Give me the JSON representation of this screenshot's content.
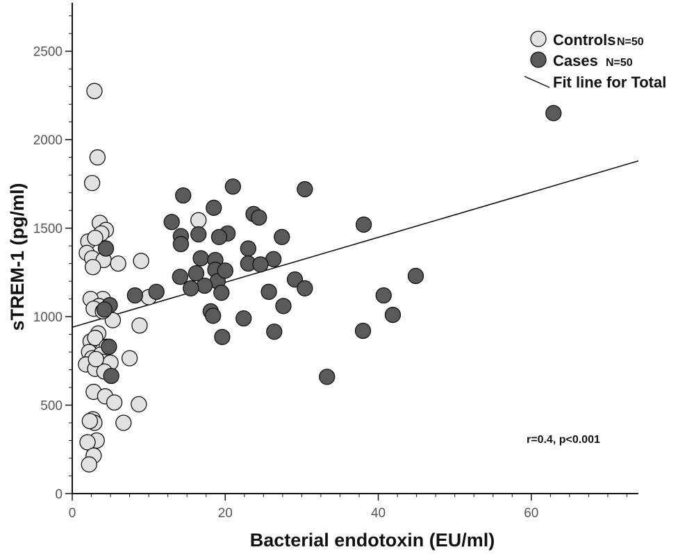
{
  "chart_data": {
    "type": "scatter",
    "title": "",
    "xlabel": "Bacterial endotoxin (EU/ml)",
    "ylabel": "sTREM-1 (pg/ml)",
    "xlim": [
      0,
      74
    ],
    "ylim": [
      0,
      2750
    ],
    "x_ticks": [
      0,
      20,
      40,
      60
    ],
    "y_ticks": [
      0,
      500,
      1000,
      1500,
      2000,
      2500
    ],
    "x_minor_step": 2.5,
    "y_minor_step": 100,
    "colors": {
      "controls": "#e2e2e2",
      "cases": "#5a5a5a",
      "outline": "#111111"
    },
    "legend": {
      "position": "top-right",
      "entries": [
        {
          "label": "Controls",
          "n": "N=50"
        },
        {
          "label": "Cases",
          "n": "N=50"
        },
        {
          "label": "Fit line for Total",
          "n": ""
        }
      ]
    },
    "annotation": "r=0.4, p<0.001",
    "fit_line": {
      "x": [
        0,
        74
      ],
      "y": [
        940,
        1880
      ]
    },
    "series": [
      {
        "name": "Controls",
        "points": [
          [
            2.9,
            2275
          ],
          [
            3.3,
            1900
          ],
          [
            2.6,
            1755
          ],
          [
            3.6,
            1530
          ],
          [
            4.4,
            1490
          ],
          [
            3.8,
            1470
          ],
          [
            2.1,
            1425
          ],
          [
            3.0,
            1445
          ],
          [
            1.9,
            1360
          ],
          [
            2.6,
            1330
          ],
          [
            4.1,
            1320
          ],
          [
            6.0,
            1300
          ],
          [
            2.7,
            1280
          ],
          [
            9.0,
            1315
          ],
          [
            4.0,
            1100
          ],
          [
            2.4,
            1100
          ],
          [
            3.5,
            1060
          ],
          [
            2.8,
            1045
          ],
          [
            10.0,
            1110
          ],
          [
            5.3,
            980
          ],
          [
            8.8,
            950
          ],
          [
            3.4,
            905
          ],
          [
            2.4,
            860
          ],
          [
            3.0,
            880
          ],
          [
            2.2,
            800
          ],
          [
            4.5,
            830
          ],
          [
            3.7,
            785
          ],
          [
            2.6,
            765
          ],
          [
            3.2,
            730
          ],
          [
            1.8,
            730
          ],
          [
            4.0,
            745
          ],
          [
            7.5,
            765
          ],
          [
            3.0,
            705
          ],
          [
            5.0,
            740
          ],
          [
            4.2,
            690
          ],
          [
            2.8,
            575
          ],
          [
            4.3,
            550
          ],
          [
            5.5,
            515
          ],
          [
            8.7,
            505
          ],
          [
            6.7,
            400
          ],
          [
            2.7,
            420
          ],
          [
            2.9,
            400
          ],
          [
            3.2,
            300
          ],
          [
            2.0,
            290
          ],
          [
            2.8,
            215
          ],
          [
            2.2,
            165
          ],
          [
            4.0,
            1030
          ],
          [
            16.5,
            1545
          ],
          [
            2.3,
            410
          ],
          [
            3.1,
            760
          ]
        ]
      },
      {
        "name": "Cases",
        "points": [
          [
            62.9,
            2150
          ],
          [
            21.0,
            1735
          ],
          [
            30.4,
            1720
          ],
          [
            14.5,
            1685
          ],
          [
            18.5,
            1615
          ],
          [
            23.7,
            1580
          ],
          [
            13.0,
            1535
          ],
          [
            24.4,
            1560
          ],
          [
            38.1,
            1520
          ],
          [
            14.2,
            1455
          ],
          [
            16.5,
            1465
          ],
          [
            20.3,
            1470
          ],
          [
            19.2,
            1450
          ],
          [
            27.4,
            1450
          ],
          [
            14.2,
            1410
          ],
          [
            23.0,
            1385
          ],
          [
            4.4,
            1385
          ],
          [
            16.8,
            1330
          ],
          [
            18.7,
            1320
          ],
          [
            26.3,
            1325
          ],
          [
            23.0,
            1300
          ],
          [
            24.6,
            1295
          ],
          [
            18.7,
            1265
          ],
          [
            14.1,
            1225
          ],
          [
            44.9,
            1230
          ],
          [
            29.1,
            1210
          ],
          [
            19.0,
            1200
          ],
          [
            17.3,
            1175
          ],
          [
            15.5,
            1160
          ],
          [
            30.4,
            1160
          ],
          [
            8.2,
            1120
          ],
          [
            11.0,
            1140
          ],
          [
            19.5,
            1135
          ],
          [
            25.7,
            1140
          ],
          [
            40.7,
            1120
          ],
          [
            4.9,
            1065
          ],
          [
            4.2,
            1040
          ],
          [
            27.6,
            1060
          ],
          [
            18.1,
            1030
          ],
          [
            18.4,
            1005
          ],
          [
            22.4,
            990
          ],
          [
            41.9,
            1010
          ],
          [
            26.4,
            915
          ],
          [
            38.0,
            920
          ],
          [
            19.6,
            885
          ],
          [
            4.8,
            830
          ],
          [
            5.1,
            665
          ],
          [
            33.3,
            660
          ],
          [
            16.2,
            1245
          ],
          [
            20.0,
            1260
          ]
        ]
      }
    ]
  }
}
